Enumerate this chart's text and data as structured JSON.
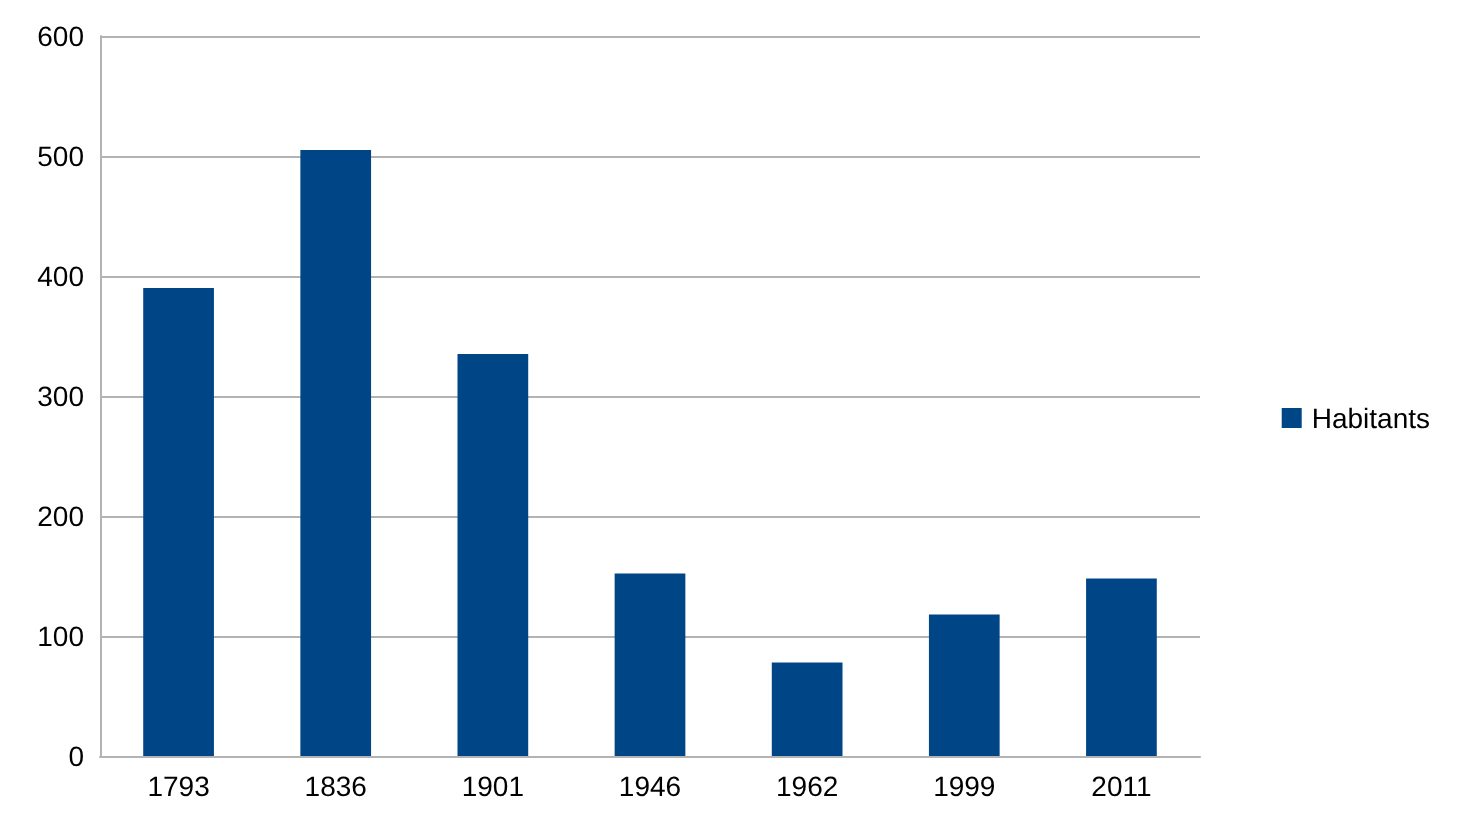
{
  "chart_data": {
    "type": "bar",
    "categories": [
      "1793",
      "1836",
      "1901",
      "1946",
      "1962",
      "1999",
      "2011"
    ],
    "series": [
      {
        "name": "Habitants",
        "color": "#004586",
        "values": [
          390,
          505,
          335,
          152,
          78,
          118,
          148
        ]
      }
    ],
    "ylim": [
      0,
      600
    ],
    "yticks": [
      0,
      100,
      200,
      300,
      400,
      500,
      600
    ],
    "grid": "y",
    "legend": "right"
  }
}
